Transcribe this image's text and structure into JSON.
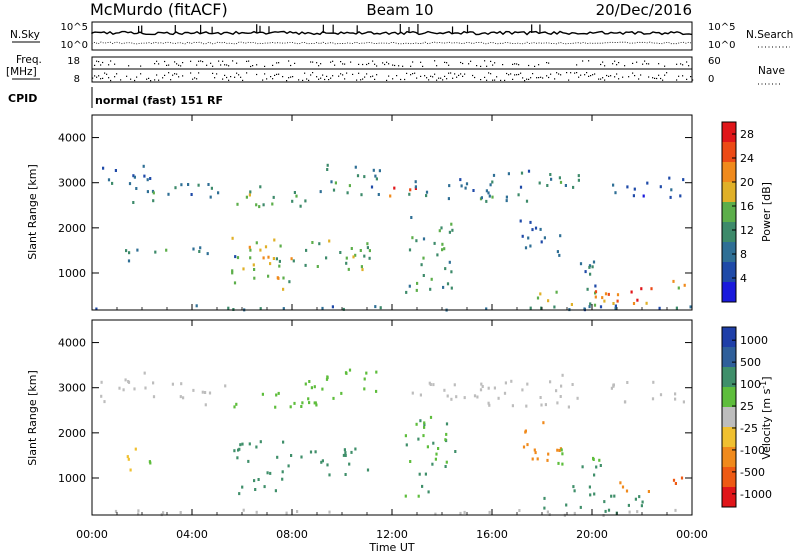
{
  "header": {
    "station": "McMurdo (fitACF)",
    "beam": "Beam 10",
    "date": "20/Dec/2016"
  },
  "param_labels": {
    "nsky": "N.Sky",
    "nsearch": "N.Search",
    "freq": "Freq.",
    "freq_unit": "[MHz]",
    "nave": "Nave",
    "cpid": "CPID",
    "cpid_value": "normal (fast) 151 RF"
  },
  "param_ticks": {
    "noise_left": [
      "10^5",
      "10^0"
    ],
    "noise_right": [
      "10^5",
      "10^0"
    ],
    "freq_left": [
      "18",
      "8"
    ],
    "nave_right": [
      "60",
      "0"
    ]
  },
  "colors": {
    "power": [
      "#1a1adc",
      "#1f4aa8",
      "#2f6f95",
      "#3d8a6a",
      "#5cae4a",
      "#e0b028",
      "#f08a1c",
      "#ec4a16",
      "#e0161a"
    ],
    "velocity": [
      "#1f3fa8",
      "#2f5f9a",
      "#3f8f6a",
      "#5ebd3c",
      "#bdbdbd",
      "#f0c030",
      "#f08a1c",
      "#ee5a14",
      "#e0161a"
    ]
  },
  "chart_data": [
    {
      "type": "heatmap",
      "title": "",
      "xlabel": "Time UT",
      "ylabel": "Slant Range [km]",
      "xlim": [
        "00:00",
        "24:00"
      ],
      "ylim": [
        180,
        4500
      ],
      "x_ticks": [
        "00:00",
        "04:00",
        "08:00",
        "12:00",
        "16:00",
        "20:00",
        "00:00"
      ],
      "y_ticks": [
        1000,
        2000,
        3000,
        4000
      ],
      "colorbar": {
        "label": "Power [dB]",
        "ticks": [
          4,
          8,
          12,
          16,
          20,
          24,
          28
        ],
        "range": [
          0,
          30
        ]
      },
      "regions": [
        {
          "t0": 0.0,
          "t1": 24.0,
          "r0": 200,
          "r1": 320,
          "value": 8
        },
        {
          "t0": 0.2,
          "t1": 2.5,
          "r0": 2700,
          "r1": 3400,
          "value": 8
        },
        {
          "t0": 1.6,
          "t1": 2.6,
          "r0": 2450,
          "r1": 2900,
          "value": 11
        },
        {
          "t0": 3.0,
          "t1": 5.5,
          "r0": 2650,
          "r1": 3150,
          "value": 8
        },
        {
          "t0": 5.3,
          "t1": 9.2,
          "r0": 2500,
          "r1": 2950,
          "value": 13
        },
        {
          "t0": 8.5,
          "t1": 11.5,
          "r0": 2750,
          "r1": 3450,
          "value": 10
        },
        {
          "t0": 11.5,
          "t1": 13.2,
          "r0": 2700,
          "r1": 2950,
          "value": 26
        },
        {
          "t0": 12.5,
          "t1": 16.0,
          "r0": 2650,
          "r1": 3150,
          "value": 9
        },
        {
          "t0": 15.5,
          "t1": 19.5,
          "r0": 2600,
          "r1": 3350,
          "value": 10
        },
        {
          "t0": 20.7,
          "t1": 23.8,
          "r0": 2700,
          "r1": 3200,
          "value": 6
        },
        {
          "t0": 1.1,
          "t1": 1.8,
          "r0": 1200,
          "r1": 1900,
          "value": 9
        },
        {
          "t0": 2.1,
          "t1": 3.0,
          "r0": 1250,
          "r1": 1550,
          "value": 11
        },
        {
          "t0": 4.0,
          "t1": 6.0,
          "r0": 1300,
          "r1": 1650,
          "value": 10
        },
        {
          "t0": 5.5,
          "t1": 8.0,
          "r0": 650,
          "r1": 1850,
          "value": 17
        },
        {
          "t0": 6.6,
          "t1": 7.6,
          "r0": 850,
          "r1": 1450,
          "value": 22
        },
        {
          "t0": 8.0,
          "t1": 11.0,
          "r0": 1100,
          "r1": 1750,
          "value": 13
        },
        {
          "t0": 10.0,
          "t1": 11.2,
          "r0": 900,
          "r1": 1600,
          "value": 14
        },
        {
          "t0": 12.5,
          "t1": 14.5,
          "r0": 600,
          "r1": 2400,
          "value": 11
        },
        {
          "t0": 17.0,
          "t1": 18.8,
          "r0": 1350,
          "r1": 2300,
          "value": 9
        },
        {
          "t0": 19.0,
          "t1": 20.5,
          "r0": 650,
          "r1": 1350,
          "value": 10
        },
        {
          "t0": 17.5,
          "t1": 21.0,
          "r0": 250,
          "r1": 650,
          "value": 16
        },
        {
          "t0": 20.0,
          "t1": 22.5,
          "r0": 250,
          "r1": 800,
          "value": 22
        },
        {
          "t0": 21.0,
          "t1": 22.2,
          "r0": 350,
          "r1": 700,
          "value": 28
        },
        {
          "t0": 23.2,
          "t1": 24.0,
          "r0": 550,
          "r1": 1050,
          "value": 18
        }
      ]
    },
    {
      "type": "heatmap",
      "title": "",
      "xlabel": "Time UT",
      "ylabel": "Slant Range [km]",
      "xlim": [
        "00:00",
        "24:00"
      ],
      "ylim": [
        180,
        4500
      ],
      "x_ticks": [
        "00:00",
        "04:00",
        "08:00",
        "12:00",
        "16:00",
        "20:00",
        "00:00"
      ],
      "y_ticks": [
        1000,
        2000,
        3000,
        4000
      ],
      "colorbar": {
        "label": "Velocity [m s^-1]",
        "ticks": [
          "1000",
          "500",
          "100",
          "25",
          "-25",
          "-100",
          "-500",
          "-1000"
        ],
        "range": [
          -1000,
          1000
        ]
      },
      "regions": [
        {
          "t0": 0.0,
          "t1": 24.0,
          "r0": 200,
          "r1": 320,
          "value": 0
        },
        {
          "t0": 0.2,
          "t1": 2.5,
          "r0": 2700,
          "r1": 3400,
          "value": 0
        },
        {
          "t0": 3.0,
          "t1": 5.5,
          "r0": 2650,
          "r1": 3150,
          "value": 0
        },
        {
          "t0": 5.3,
          "t1": 9.2,
          "r0": 2500,
          "r1": 2950,
          "value": 60
        },
        {
          "t0": 8.5,
          "t1": 11.5,
          "r0": 2750,
          "r1": 3450,
          "value": 80
        },
        {
          "t0": 12.5,
          "t1": 16.0,
          "r0": 2650,
          "r1": 3150,
          "value": 0
        },
        {
          "t0": 15.5,
          "t1": 19.5,
          "r0": 2600,
          "r1": 3350,
          "value": 0
        },
        {
          "t0": 20.7,
          "t1": 23.8,
          "r0": 2700,
          "r1": 3200,
          "value": 0
        },
        {
          "t0": 1.1,
          "t1": 1.8,
          "r0": 1200,
          "r1": 1900,
          "value": -80
        },
        {
          "t0": 2.1,
          "t1": 3.0,
          "r0": 1250,
          "r1": 1550,
          "value": 60
        },
        {
          "t0": 5.5,
          "t1": 8.0,
          "r0": 650,
          "r1": 1850,
          "value": 300
        },
        {
          "t0": 8.0,
          "t1": 11.0,
          "r0": 1100,
          "r1": 1750,
          "value": 300
        },
        {
          "t0": 12.5,
          "t1": 14.5,
          "r0": 600,
          "r1": 2400,
          "value": 200
        },
        {
          "t0": 17.0,
          "t1": 18.8,
          "r0": 1350,
          "r1": 2300,
          "value": -300
        },
        {
          "t0": 18.5,
          "t1": 20.5,
          "r0": 1300,
          "r1": 1700,
          "value": 80
        },
        {
          "t0": 19.0,
          "t1": 20.5,
          "r0": 650,
          "r1": 1350,
          "value": 300
        },
        {
          "t0": 17.5,
          "t1": 22.0,
          "r0": 250,
          "r1": 650,
          "value": 300
        },
        {
          "t0": 21.0,
          "t1": 22.5,
          "r0": 700,
          "r1": 1000,
          "value": -400
        },
        {
          "t0": 23.2,
          "t1": 24.0,
          "r0": 550,
          "r1": 1050,
          "value": -600
        }
      ]
    }
  ]
}
